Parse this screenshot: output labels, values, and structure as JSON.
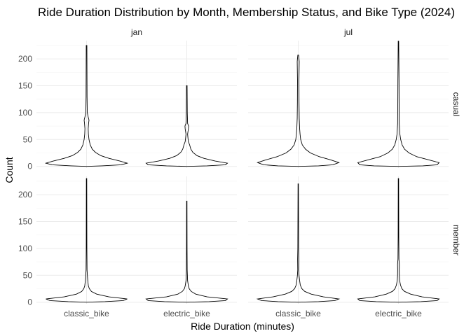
{
  "chart_data": {
    "type": "violin",
    "title": "Ride Duration Distribution by Month, Membership Status, and Bike Type (2024)",
    "xlabel": "Ride Duration (minutes)",
    "ylabel": "Count",
    "column_facets": [
      "jan",
      "jul"
    ],
    "row_facets": [
      "casual",
      "member"
    ],
    "categories": [
      "classic_bike",
      "electric_bike"
    ],
    "ylim": [
      -3,
      234
    ],
    "y_ticks": [
      0,
      50,
      100,
      150,
      200
    ],
    "y_tick_labels": [
      "0",
      "50",
      "100",
      "150",
      "200"
    ],
    "grid": true,
    "legend": "none",
    "panels": [
      {
        "month": "jan",
        "member_casual": "casual",
        "violins": [
          {
            "category": "classic_bike",
            "max": 225,
            "profile": [
              [
                0,
                0.005
              ],
              [
                1,
                0.38
              ],
              [
                3,
                0.85
              ],
              [
                6,
                1.0
              ],
              [
                10,
                0.82
              ],
              [
                15,
                0.55
              ],
              [
                20,
                0.35
              ],
              [
                26,
                0.22
              ],
              [
                32,
                0.14
              ],
              [
                40,
                0.09
              ],
              [
                50,
                0.06
              ],
              [
                60,
                0.045
              ],
              [
                70,
                0.04
              ],
              [
                80,
                0.05
              ],
              [
                86,
                0.06
              ],
              [
                92,
                0.04
              ],
              [
                100,
                0.018
              ],
              [
                130,
                0.012
              ],
              [
                180,
                0.01
              ],
              [
                225,
                0.008
              ]
            ]
          },
          {
            "category": "electric_bike",
            "max": 150,
            "profile": [
              [
                0,
                0.005
              ],
              [
                1,
                0.5
              ],
              [
                3,
                0.95
              ],
              [
                6,
                1.0
              ],
              [
                10,
                0.7
              ],
              [
                15,
                0.42
              ],
              [
                20,
                0.25
              ],
              [
                26,
                0.15
              ],
              [
                32,
                0.1
              ],
              [
                40,
                0.07
              ],
              [
                46,
                0.04
              ],
              [
                52,
                0.03
              ],
              [
                60,
                0.02
              ],
              [
                70,
                0.04
              ],
              [
                75,
                0.045
              ],
              [
                80,
                0.02
              ],
              [
                100,
                0.012
              ],
              [
                150,
                0.008
              ]
            ]
          }
        ]
      },
      {
        "month": "jul",
        "member_casual": "casual",
        "violins": [
          {
            "category": "classic_bike",
            "max": 207,
            "profile": [
              [
                0,
                0.005
              ],
              [
                1,
                0.5
              ],
              [
                3,
                0.85
              ],
              [
                7,
                1.0
              ],
              [
                12,
                0.8
              ],
              [
                18,
                0.52
              ],
              [
                25,
                0.3
              ],
              [
                32,
                0.18
              ],
              [
                40,
                0.1
              ],
              [
                50,
                0.06
              ],
              [
                60,
                0.045
              ],
              [
                70,
                0.035
              ],
              [
                90,
                0.025
              ],
              [
                120,
                0.02
              ],
              [
                160,
                0.018
              ],
              [
                195,
                0.025
              ],
              [
                207,
                0.01
              ]
            ]
          },
          {
            "category": "electric_bike",
            "max": 233,
            "profile": [
              [
                0,
                0.005
              ],
              [
                1,
                0.6
              ],
              [
                3,
                0.95
              ],
              [
                7,
                1.0
              ],
              [
                12,
                0.75
              ],
              [
                18,
                0.45
              ],
              [
                25,
                0.26
              ],
              [
                32,
                0.15
              ],
              [
                40,
                0.09
              ],
              [
                50,
                0.055
              ],
              [
                60,
                0.035
              ],
              [
                70,
                0.028
              ],
              [
                80,
                0.02
              ],
              [
                120,
                0.016
              ],
              [
                160,
                0.014
              ],
              [
                233,
                0.006
              ]
            ]
          }
        ]
      },
      {
        "month": "jan",
        "member_casual": "member",
        "violins": [
          {
            "category": "classic_bike",
            "max": 230,
            "profile": [
              [
                0,
                0.005
              ],
              [
                1,
                0.45
              ],
              [
                3,
                0.9
              ],
              [
                6,
                1.0
              ],
              [
                10,
                0.55
              ],
              [
                15,
                0.25
              ],
              [
                20,
                0.12
              ],
              [
                25,
                0.07
              ],
              [
                30,
                0.045
              ],
              [
                40,
                0.03
              ],
              [
                50,
                0.02
              ],
              [
                60,
                0.012
              ],
              [
                100,
                0.008
              ],
              [
                230,
                0.005
              ]
            ]
          },
          {
            "category": "electric_bike",
            "max": 188,
            "profile": [
              [
                0,
                0.005
              ],
              [
                1,
                0.55
              ],
              [
                3,
                0.95
              ],
              [
                6,
                1.0
              ],
              [
                10,
                0.5
              ],
              [
                15,
                0.22
              ],
              [
                20,
                0.11
              ],
              [
                25,
                0.06
              ],
              [
                30,
                0.04
              ],
              [
                40,
                0.02
              ],
              [
                60,
                0.01
              ],
              [
                100,
                0.007
              ],
              [
                188,
                0.005
              ]
            ]
          }
        ]
      },
      {
        "month": "jul",
        "member_casual": "member",
        "violins": [
          {
            "category": "classic_bike",
            "max": 220,
            "profile": [
              [
                0,
                0.005
              ],
              [
                1,
                0.5
              ],
              [
                3,
                0.9
              ],
              [
                6,
                1.0
              ],
              [
                10,
                0.62
              ],
              [
                15,
                0.32
              ],
              [
                20,
                0.16
              ],
              [
                25,
                0.09
              ],
              [
                32,
                0.05
              ],
              [
                40,
                0.035
              ],
              [
                50,
                0.02
              ],
              [
                60,
                0.012
              ],
              [
                80,
                0.015
              ],
              [
                100,
                0.01
              ],
              [
                220,
                0.005
              ]
            ]
          },
          {
            "category": "electric_bike",
            "max": 230,
            "profile": [
              [
                0,
                0.005
              ],
              [
                1,
                0.55
              ],
              [
                3,
                0.95
              ],
              [
                6,
                1.0
              ],
              [
                10,
                0.58
              ],
              [
                15,
                0.3
              ],
              [
                20,
                0.15
              ],
              [
                25,
                0.085
              ],
              [
                32,
                0.05
              ],
              [
                40,
                0.03
              ],
              [
                50,
                0.022
              ],
              [
                60,
                0.02
              ],
              [
                70,
                0.022
              ],
              [
                80,
                0.012
              ],
              [
                120,
                0.008
              ],
              [
                230,
                0.005
              ]
            ]
          }
        ]
      }
    ]
  }
}
